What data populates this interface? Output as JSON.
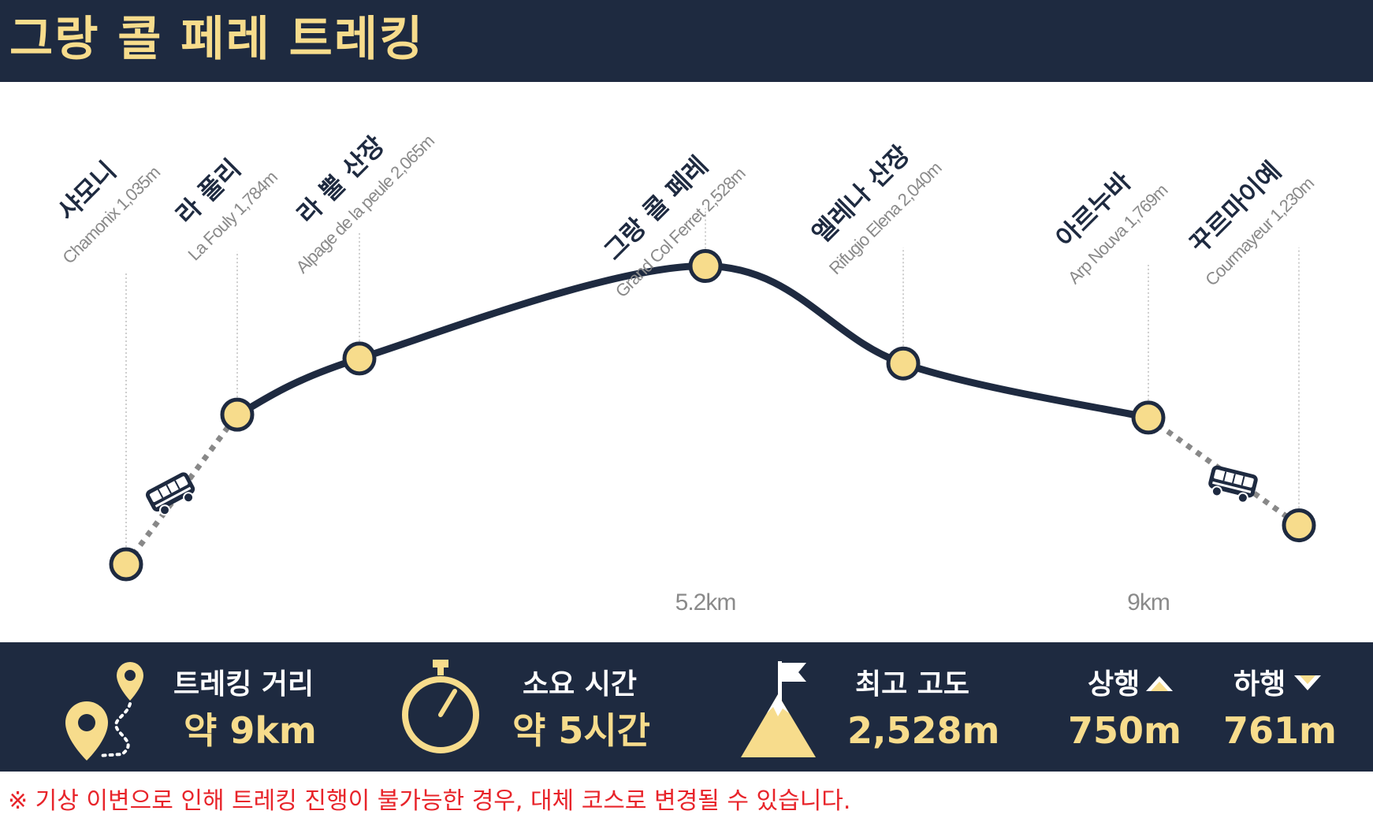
{
  "header": {
    "title": "그랑 콜 페레 트레킹"
  },
  "colors": {
    "navy": "#1e2a40",
    "accent": "#f7dc8c",
    "note": "#e8242a",
    "label_gray": "#8a8a8a",
    "connector_dots": "#888888"
  },
  "chart_data": {
    "type": "line",
    "title": "그랑 콜 페레 트레킹",
    "points": [
      {
        "name_ko": "샤모니",
        "name_en": "Chamonix",
        "elevation": "1,035m",
        "elevation_m": 1035,
        "segment": "bus"
      },
      {
        "name_ko": "라 풀리",
        "name_en": "La Fouly",
        "elevation": "1,784m",
        "elevation_m": 1784,
        "segment": "trek"
      },
      {
        "name_ko": "라 뿔 산장",
        "name_en": "Alpage de la peule",
        "elevation": "2,065m",
        "elevation_m": 2065,
        "segment": "trek"
      },
      {
        "name_ko": "그랑 콜 페레",
        "name_en": "Grand Col Ferret",
        "elevation": "2,528m",
        "elevation_m": 2528,
        "segment": "trek"
      },
      {
        "name_ko": "엘레나 산장",
        "name_en": "Rifugio Elena",
        "elevation": "2,040m",
        "elevation_m": 2040,
        "segment": "trek"
      },
      {
        "name_ko": "아르누바",
        "name_en": "Arp Nouva",
        "elevation": "1,769m",
        "elevation_m": 1769,
        "segment": "bus"
      },
      {
        "name_ko": "꾸르마이예",
        "name_en": "Courmayeur",
        "elevation": "1,230m",
        "elevation_m": 1230,
        "segment": "end"
      }
    ],
    "distance_markers": [
      {
        "at_point": 3,
        "label": "5.2km"
      },
      {
        "at_point": 5,
        "label": "9km"
      }
    ],
    "bus_segments": [
      [
        0,
        1
      ],
      [
        5,
        6
      ]
    ]
  },
  "stats": {
    "distance": {
      "label": "트레킹 거리",
      "value": "약 9km",
      "icon": "map-pin-route-icon"
    },
    "time": {
      "label": "소요 시간",
      "value": "약 5시간",
      "icon": "stopwatch-icon"
    },
    "altitude": {
      "label": "최고 고도",
      "value": "2,528m",
      "icon": "mountain-flag-icon"
    },
    "ascent": {
      "label": "상행",
      "value": "750m",
      "icon": "triangle-up-icon"
    },
    "descent": {
      "label": "하행",
      "value": "761m",
      "icon": "triangle-down-icon"
    }
  },
  "note": "※ 기상 이변으로 인해 트레킹 진행이 불가능한 경우, 대체 코스로 변경될 수 있습니다."
}
